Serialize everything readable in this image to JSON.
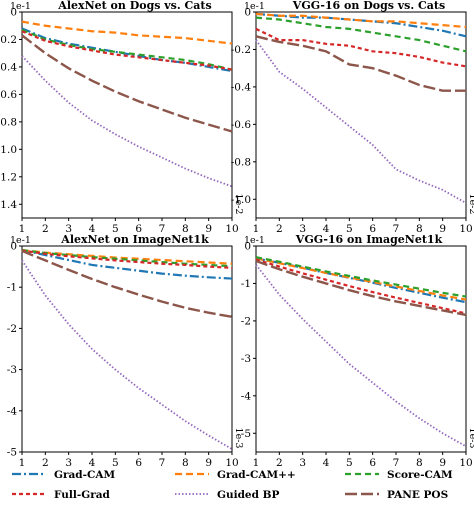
{
  "chart_data": [
    {
      "type": "line",
      "title": "AlexNet on Dogs vs. Cats",
      "y_scale_label": "1e-1",
      "x_scale_label": "1e-2",
      "x": [
        1,
        2,
        3,
        4,
        5,
        6,
        7,
        8,
        9,
        10
      ],
      "xlim": [
        1,
        10
      ],
      "ylim": [
        -1.5,
        0
      ],
      "yticks": [
        0,
        -0.2,
        -0.4,
        -0.6,
        -0.8,
        -1.0,
        -1.2,
        -1.4
      ],
      "ytick_labels": [
        "0",
        "-0.2",
        "-0.4",
        "-0.6",
        "-0.8",
        "-1.0",
        "-1.2",
        "-1.4"
      ],
      "series": [
        {
          "name": "Grad-CAM",
          "values": [
            -0.12,
            -0.19,
            -0.23,
            -0.26,
            -0.29,
            -0.32,
            -0.35,
            -0.37,
            -0.4,
            -0.43
          ]
        },
        {
          "name": "Grad-CAM++",
          "values": [
            -0.07,
            -0.1,
            -0.12,
            -0.14,
            -0.15,
            -0.17,
            -0.18,
            -0.19,
            -0.21,
            -0.23
          ]
        },
        {
          "name": "Score-CAM",
          "values": [
            -0.13,
            -0.2,
            -0.24,
            -0.27,
            -0.29,
            -0.31,
            -0.33,
            -0.35,
            -0.38,
            -0.42
          ]
        },
        {
          "name": "Full-Grad",
          "values": [
            -0.14,
            -0.21,
            -0.25,
            -0.28,
            -0.31,
            -0.33,
            -0.35,
            -0.37,
            -0.39,
            -0.42
          ]
        },
        {
          "name": "Guided BP",
          "values": [
            -0.32,
            -0.5,
            -0.66,
            -0.79,
            -0.89,
            -0.98,
            -1.06,
            -1.14,
            -1.21,
            -1.27
          ]
        },
        {
          "name": "PANE POS",
          "values": [
            -0.17,
            -0.3,
            -0.41,
            -0.5,
            -0.58,
            -0.65,
            -0.71,
            -0.77,
            -0.82,
            -0.87
          ]
        }
      ]
    },
    {
      "type": "line",
      "title": "VGG-16 on Dogs vs. Cats",
      "y_scale_label": "1e-1",
      "x_scale_label": "1e-2",
      "x": [
        1,
        2,
        3,
        4,
        5,
        6,
        7,
        8,
        9,
        10
      ],
      "xlim": [
        1,
        10
      ],
      "ylim": [
        -1.1,
        0
      ],
      "yticks": [
        0,
        -0.2,
        -0.4,
        -0.6,
        -0.8,
        -1.0
      ],
      "ytick_labels": [
        "0",
        "-0.2",
        "-0.4",
        "-0.6",
        "-0.8",
        "-1.0"
      ],
      "series": [
        {
          "name": "Grad-CAM",
          "values": [
            -0.01,
            -0.02,
            -0.03,
            -0.03,
            -0.04,
            -0.05,
            -0.06,
            -0.08,
            -0.1,
            -0.13
          ]
        },
        {
          "name": "Grad-CAM++",
          "values": [
            -0.01,
            -0.02,
            -0.02,
            -0.03,
            -0.04,
            -0.05,
            -0.05,
            -0.06,
            -0.07,
            -0.08
          ]
        },
        {
          "name": "Score-CAM",
          "values": [
            -0.03,
            -0.04,
            -0.06,
            -0.08,
            -0.09,
            -0.11,
            -0.13,
            -0.15,
            -0.18,
            -0.21
          ]
        },
        {
          "name": "Full-Grad",
          "values": [
            -0.09,
            -0.15,
            -0.15,
            -0.17,
            -0.18,
            -0.21,
            -0.22,
            -0.24,
            -0.27,
            -0.29
          ]
        },
        {
          "name": "Guided BP",
          "values": [
            -0.15,
            -0.32,
            -0.41,
            -0.51,
            -0.61,
            -0.71,
            -0.84,
            -0.9,
            -0.95,
            -1.02
          ]
        },
        {
          "name": "PANE POS",
          "values": [
            -0.13,
            -0.16,
            -0.18,
            -0.21,
            -0.28,
            -0.3,
            -0.34,
            -0.39,
            -0.42,
            -0.42
          ]
        }
      ]
    },
    {
      "type": "line",
      "title": "AlexNet on ImageNet1k",
      "y_scale_label": "1e-1",
      "x_scale_label": "1e-3",
      "x": [
        1,
        2,
        3,
        4,
        5,
        6,
        7,
        8,
        9,
        10
      ],
      "xlim": [
        1,
        10
      ],
      "ylim": [
        -5,
        0
      ],
      "yticks": [
        0,
        -1,
        -2,
        -3,
        -4,
        -5
      ],
      "ytick_labels": [
        "0",
        "-1",
        "-2",
        "-3",
        "-4",
        "-5"
      ],
      "series": [
        {
          "name": "Grad-CAM",
          "values": [
            -0.1,
            -0.22,
            -0.34,
            -0.46,
            -0.53,
            -0.6,
            -0.67,
            -0.72,
            -0.76,
            -0.79
          ]
        },
        {
          "name": "Grad-CAM++",
          "values": [
            -0.1,
            -0.16,
            -0.2,
            -0.24,
            -0.28,
            -0.31,
            -0.34,
            -0.37,
            -0.4,
            -0.43
          ]
        },
        {
          "name": "Score-CAM",
          "values": [
            -0.1,
            -0.17,
            -0.22,
            -0.27,
            -0.31,
            -0.35,
            -0.39,
            -0.43,
            -0.46,
            -0.49
          ]
        },
        {
          "name": "Full-Grad",
          "values": [
            -0.11,
            -0.19,
            -0.25,
            -0.3,
            -0.35,
            -0.39,
            -0.43,
            -0.46,
            -0.5,
            -0.53
          ]
        },
        {
          "name": "Guided BP",
          "values": [
            -0.35,
            -1.2,
            -1.9,
            -2.5,
            -3.0,
            -3.45,
            -3.85,
            -4.25,
            -4.6,
            -4.93
          ]
        },
        {
          "name": "PANE POS",
          "values": [
            -0.12,
            -0.35,
            -0.58,
            -0.8,
            -1.0,
            -1.18,
            -1.35,
            -1.5,
            -1.62,
            -1.72
          ]
        }
      ]
    },
    {
      "type": "line",
      "title": "VGG-16 on ImageNet1k",
      "y_scale_label": "1e-1",
      "x_scale_label": "1e-3",
      "x": [
        1,
        2,
        3,
        4,
        5,
        6,
        7,
        8,
        9,
        10
      ],
      "xlim": [
        1,
        10
      ],
      "ylim": [
        -5.5,
        0
      ],
      "yticks": [
        0,
        -1,
        -2,
        -3,
        -4,
        -5
      ],
      "ytick_labels": [
        "0",
        "-1",
        "-2",
        "-3",
        "-4",
        "-5"
      ],
      "series": [
        {
          "name": "Grad-CAM",
          "values": [
            -0.33,
            -0.45,
            -0.58,
            -0.72,
            -0.85,
            -0.98,
            -1.12,
            -1.25,
            -1.38,
            -1.5
          ]
        },
        {
          "name": "Grad-CAM++",
          "values": [
            -0.33,
            -0.46,
            -0.59,
            -0.72,
            -0.84,
            -0.96,
            -1.08,
            -1.2,
            -1.32,
            -1.43
          ]
        },
        {
          "name": "Score-CAM",
          "values": [
            -0.3,
            -0.42,
            -0.55,
            -0.68,
            -0.8,
            -0.92,
            -1.03,
            -1.14,
            -1.25,
            -1.35
          ]
        },
        {
          "name": "Full-Grad",
          "values": [
            -0.36,
            -0.55,
            -0.73,
            -0.9,
            -1.07,
            -1.23,
            -1.38,
            -1.52,
            -1.66,
            -1.8
          ]
        },
        {
          "name": "Guided BP",
          "values": [
            -0.5,
            -1.3,
            -1.95,
            -2.55,
            -3.15,
            -3.65,
            -4.15,
            -4.6,
            -5.0,
            -5.35
          ]
        },
        {
          "name": "PANE POS",
          "values": [
            -0.4,
            -0.62,
            -0.82,
            -1.0,
            -1.18,
            -1.34,
            -1.48,
            -1.6,
            -1.72,
            -1.84
          ]
        }
      ]
    }
  ],
  "legend": {
    "placement": "bottom",
    "entries": [
      {
        "label": "Grad-CAM",
        "color": "#1f77b4",
        "dash": "dashdot"
      },
      {
        "label": "Grad-CAM++",
        "color": "#ff7f0e",
        "dash": "dashed"
      },
      {
        "label": "Score-CAM",
        "color": "#2ca02c",
        "dash": "dashed"
      },
      {
        "label": "Full-Grad",
        "color": "#d62728",
        "dash": "dotted-dash"
      },
      {
        "label": "Guided BP",
        "color": "#9467bd",
        "dash": "dotted"
      },
      {
        "label": "PANE POS",
        "color": "#8c564b",
        "dash": "long-dash"
      }
    ]
  },
  "colors": {
    "Grad-CAM": "#1f77b4",
    "Grad-CAM++": "#ff7f0e",
    "Score-CAM": "#2ca02c",
    "Full-Grad": "#d62728",
    "Guided BP": "#9467bd",
    "PANE POS": "#8c564b"
  }
}
